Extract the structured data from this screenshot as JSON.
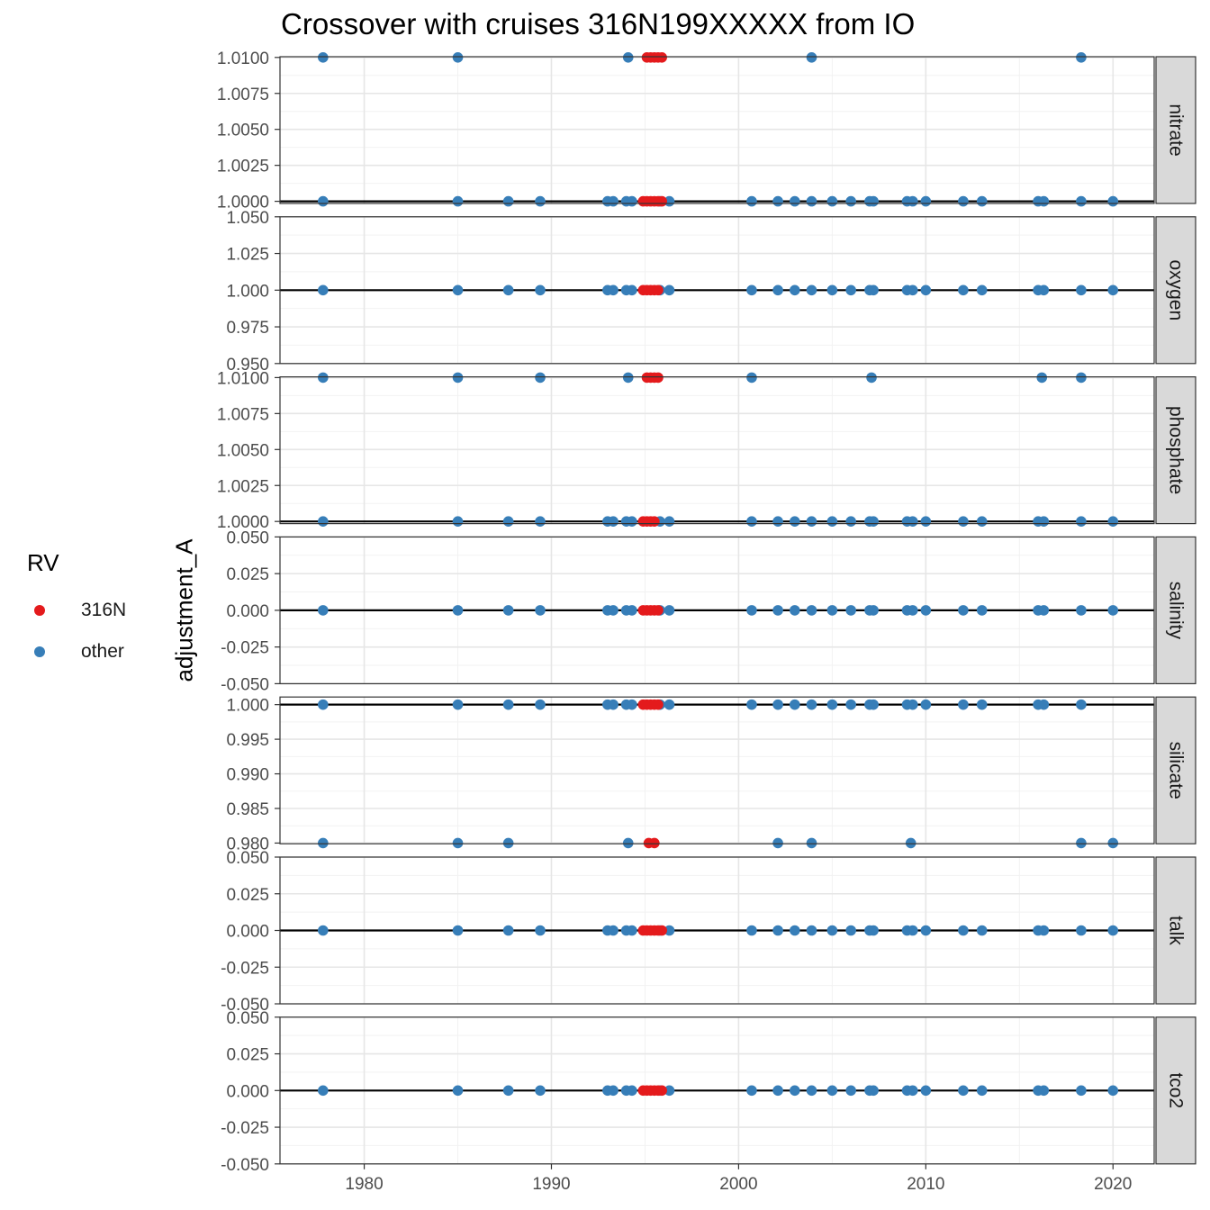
{
  "chart_data": {
    "type": "scatter",
    "title": "Crossover with cruises 316N199XXXXX from IO",
    "xlabel": "",
    "ylabel": "adjustment_A",
    "xlim": [
      1975.5,
      2022.2
    ],
    "x_ticks": [
      1980,
      1990,
      2000,
      2010,
      2020
    ],
    "grid": true,
    "legend": {
      "title": "RV",
      "position": "left",
      "entries": [
        {
          "name": "316N",
          "color": "#E41A1C"
        },
        {
          "name": "other",
          "color": "#377EB8"
        }
      ]
    },
    "reference_lines": [
      {
        "facet": "nitrate",
        "y": 1.0
      },
      {
        "facet": "oxygen",
        "y": 1.0
      },
      {
        "facet": "phosphate",
        "y": 1.0
      },
      {
        "facet": "salinity",
        "y": 0.0
      },
      {
        "facet": "silicate",
        "y": 1.0
      },
      {
        "facet": "talk",
        "y": 0.0
      },
      {
        "facet": "tco2",
        "y": 0.0
      }
    ],
    "facets": [
      {
        "name": "nitrate",
        "ylim": [
          0.99985,
          1.01005
        ],
        "yticks": [
          "1.0100",
          "1.0075",
          "1.0050",
          "1.0025",
          "1.0000"
        ],
        "ytick_values": [
          1.01,
          1.0075,
          1.005,
          1.0025,
          1.0
        ],
        "series": [
          {
            "name": "other",
            "x": [
              1977.8,
              1985,
              1994.1,
              2003.9,
              2018.3,
              1977.8,
              1985,
              1987.7,
              1989.4,
              1993,
              1993.3,
              1994,
              1994.3,
              1995.8,
              1996.3,
              2000.7,
              2002.1,
              2003,
              2003.9,
              2005,
              2006,
              2007,
              2007.2,
              2009,
              2009.3,
              2010,
              2012,
              2013,
              2016,
              2016.3,
              2018.3,
              2020
            ],
            "y": [
              1.01,
              1.01,
              1.01,
              1.01,
              1.01,
              1.0,
              1.0,
              1.0,
              1.0,
              1.0,
              1.0,
              1.0,
              1.0,
              1.0,
              1.0,
              1.0,
              1.0,
              1.0,
              1.0,
              1.0,
              1.0,
              1.0,
              1.0,
              1.0,
              1.0,
              1.0,
              1.0,
              1.0,
              1.0,
              1.0,
              1.0,
              1.0
            ]
          },
          {
            "name": "316N",
            "x": [
              1995.1,
              1995.3,
              1995.5,
              1995.7,
              1995.9,
              1994.9,
              1995.1,
              1995.3,
              1995.5,
              1995.7,
              1995.9
            ],
            "y": [
              1.01,
              1.01,
              1.01,
              1.01,
              1.01,
              1.0,
              1.0,
              1.0,
              1.0,
              1.0,
              1.0
            ]
          }
        ]
      },
      {
        "name": "oxygen",
        "ylim": [
          0.95,
          1.05
        ],
        "yticks": [
          "1.050",
          "1.025",
          "1.000",
          "0.975",
          "0.950"
        ],
        "ytick_values": [
          1.05,
          1.025,
          1.0,
          0.975,
          0.95
        ],
        "series": [
          {
            "name": "other",
            "x": [
              1977.8,
              1985,
              1987.7,
              1989.4,
              1993,
              1993.3,
              1994,
              1994.3,
              1995.8,
              1996.3,
              2000.7,
              2002.1,
              2003,
              2003.9,
              2005,
              2006,
              2007,
              2007.2,
              2009,
              2009.3,
              2010,
              2012,
              2013,
              2016,
              2016.3,
              2018.3,
              2020
            ],
            "y": [
              1.0,
              1.0,
              1.0,
              1.0,
              1.0,
              1.0,
              1.0,
              1.0,
              1.0,
              1.0,
              1.0,
              1.0,
              1.0,
              1.0,
              1.0,
              1.0,
              1.0,
              1.0,
              1.0,
              1.0,
              1.0,
              1.0,
              1.0,
              1.0,
              1.0,
              1.0,
              1.0
            ]
          },
          {
            "name": "316N",
            "x": [
              1994.9,
              1995.1,
              1995.3,
              1995.5,
              1995.7
            ],
            "y": [
              1.0,
              1.0,
              1.0,
              1.0,
              1.0
            ]
          }
        ]
      },
      {
        "name": "phosphate",
        "ylim": [
          0.99985,
          1.01005
        ],
        "yticks": [
          "1.0100",
          "1.0075",
          "1.0050",
          "1.0025",
          "1.0000"
        ],
        "ytick_values": [
          1.01,
          1.0075,
          1.005,
          1.0025,
          1.0
        ],
        "series": [
          {
            "name": "other",
            "x": [
              1977.8,
              1985,
              1989.4,
              1994.1,
              2000.7,
              2007.1,
              2016.2,
              2018.3,
              1977.8,
              1985,
              1987.7,
              1989.4,
              1993,
              1993.3,
              1994,
              1994.3,
              1995.8,
              1996.3,
              2000.7,
              2002.1,
              2003,
              2003.9,
              2005,
              2006,
              2007,
              2007.2,
              2009,
              2009.3,
              2010,
              2012,
              2013,
              2016,
              2016.3,
              2018.3,
              2020
            ],
            "y": [
              1.01,
              1.01,
              1.01,
              1.01,
              1.01,
              1.01,
              1.01,
              1.01,
              1.0,
              1.0,
              1.0,
              1.0,
              1.0,
              1.0,
              1.0,
              1.0,
              1.0,
              1.0,
              1.0,
              1.0,
              1.0,
              1.0,
              1.0,
              1.0,
              1.0,
              1.0,
              1.0,
              1.0,
              1.0,
              1.0,
              1.0,
              1.0,
              1.0,
              1.0,
              1.0
            ]
          },
          {
            "name": "316N",
            "x": [
              1995.1,
              1995.3,
              1995.5,
              1995.7,
              1994.9,
              1995.1,
              1995.3,
              1995.5
            ],
            "y": [
              1.01,
              1.01,
              1.01,
              1.01,
              1.0,
              1.0,
              1.0,
              1.0
            ]
          }
        ]
      },
      {
        "name": "salinity",
        "ylim": [
          -0.05,
          0.05
        ],
        "yticks": [
          "0.050",
          "0.025",
          "0.000",
          "-0.025",
          "-0.050"
        ],
        "ytick_values": [
          0.05,
          0.025,
          0.0,
          -0.025,
          -0.05
        ],
        "series": [
          {
            "name": "other",
            "x": [
              1977.8,
              1985,
              1987.7,
              1989.4,
              1993,
              1993.3,
              1994,
              1994.3,
              1995.8,
              1996.3,
              2000.7,
              2002.1,
              2003,
              2003.9,
              2005,
              2006,
              2007,
              2007.2,
              2009,
              2009.3,
              2010,
              2012,
              2013,
              2016,
              2016.3,
              2018.3,
              2020
            ],
            "y": [
              0,
              0,
              0,
              0,
              0,
              0,
              0,
              0,
              0,
              0,
              0,
              0,
              0,
              0,
              0,
              0,
              0,
              0,
              0,
              0,
              0,
              0,
              0,
              0,
              0,
              0,
              0
            ]
          },
          {
            "name": "316N",
            "x": [
              1994.9,
              1995.1,
              1995.3,
              1995.5,
              1995.7
            ],
            "y": [
              0,
              0,
              0,
              0,
              0
            ]
          }
        ]
      },
      {
        "name": "silicate",
        "ylim": [
          0.9799,
          1.0011
        ],
        "yticks": [
          "1.000",
          "0.995",
          "0.990",
          "0.985",
          "0.980"
        ],
        "ytick_values": [
          1.0,
          0.995,
          0.99,
          0.985,
          0.98
        ],
        "series": [
          {
            "name": "other",
            "x": [
              1977.8,
              1985,
              1987.7,
              1989.4,
              1993,
              1993.3,
              1994,
              1994.3,
              1995.8,
              1996.3,
              2000.7,
              2002.1,
              2003,
              2003.9,
              2005,
              2006,
              2007,
              2007.2,
              2009,
              2009.3,
              2010,
              2012,
              2013,
              2016,
              2016.3,
              2018.3,
              1977.8,
              1985,
              1987.7,
              1994.1,
              2002.1,
              2003.9,
              2009.2,
              2018.3,
              2020
            ],
            "y": [
              1.0,
              1.0,
              1.0,
              1.0,
              1.0,
              1.0,
              1.0,
              1.0,
              1.0,
              1.0,
              1.0,
              1.0,
              1.0,
              1.0,
              1.0,
              1.0,
              1.0,
              1.0,
              1.0,
              1.0,
              1.0,
              1.0,
              1.0,
              1.0,
              1.0,
              1.0,
              0.98,
              0.98,
              0.98,
              0.98,
              0.98,
              0.98,
              0.98,
              0.98,
              0.98
            ]
          },
          {
            "name": "316N",
            "x": [
              1994.9,
              1995.1,
              1995.3,
              1995.5,
              1995.7,
              1995.2,
              1995.5
            ],
            "y": [
              1.0,
              1.0,
              1.0,
              1.0,
              1.0,
              0.98,
              0.98
            ]
          }
        ]
      },
      {
        "name": "talk",
        "ylim": [
          -0.05,
          0.05
        ],
        "yticks": [
          "0.050",
          "0.025",
          "0.000",
          "-0.025",
          "-0.050"
        ],
        "ytick_values": [
          0.05,
          0.025,
          0.0,
          -0.025,
          -0.05
        ],
        "series": [
          {
            "name": "other",
            "x": [
              1977.8,
              1985,
              1987.7,
              1989.4,
              1993,
              1993.3,
              1994,
              1994.3,
              1995.8,
              1996.3,
              2000.7,
              2002.1,
              2003,
              2003.9,
              2005,
              2006,
              2007,
              2007.2,
              2009,
              2009.3,
              2010,
              2012,
              2013,
              2016,
              2016.3,
              2018.3,
              2020
            ],
            "y": [
              0,
              0,
              0,
              0,
              0,
              0,
              0,
              0,
              0,
              0,
              0,
              0,
              0,
              0,
              0,
              0,
              0,
              0,
              0,
              0,
              0,
              0,
              0,
              0,
              0,
              0,
              0
            ]
          },
          {
            "name": "316N",
            "x": [
              1994.9,
              1995.1,
              1995.3,
              1995.5,
              1995.7,
              1995.9
            ],
            "y": [
              0,
              0,
              0,
              0,
              0,
              0
            ]
          }
        ]
      },
      {
        "name": "tco2",
        "ylim": [
          -0.05,
          0.05
        ],
        "yticks": [
          "0.050",
          "0.025",
          "0.000",
          "-0.025",
          "-0.050"
        ],
        "ytick_values": [
          0.05,
          0.025,
          0.0,
          -0.025,
          -0.05
        ],
        "series": [
          {
            "name": "other",
            "x": [
              1977.8,
              1985,
              1987.7,
              1989.4,
              1993,
              1993.3,
              1994,
              1994.3,
              1995.8,
              1996.3,
              2000.7,
              2002.1,
              2003,
              2003.9,
              2005,
              2006,
              2007,
              2007.2,
              2009,
              2009.3,
              2010,
              2012,
              2013,
              2016,
              2016.3,
              2018.3,
              2020
            ],
            "y": [
              0,
              0,
              0,
              0,
              0,
              0,
              0,
              0,
              0,
              0,
              0,
              0,
              0,
              0,
              0,
              0,
              0,
              0,
              0,
              0,
              0,
              0,
              0,
              0,
              0,
              0,
              0
            ]
          },
          {
            "name": "316N",
            "x": [
              1994.9,
              1995.1,
              1995.3,
              1995.5,
              1995.7,
              1995.9
            ],
            "y": [
              0,
              0,
              0,
              0,
              0,
              0
            ]
          }
        ]
      }
    ]
  }
}
